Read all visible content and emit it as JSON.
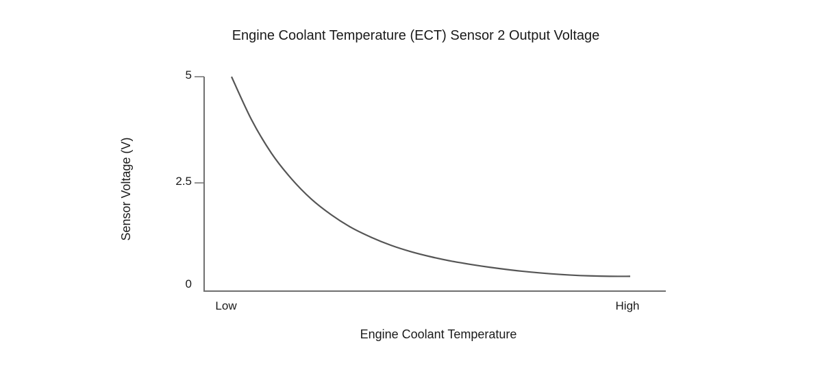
{
  "chart_data": {
    "type": "line",
    "title": "Engine Coolant Temperature (ECT) Sensor 2 Output Voltage",
    "xlabel": "Engine Coolant Temperature",
    "ylabel": "Sensor Voltage (V)",
    "x_ticks": [
      {
        "label": "Low",
        "value": 0
      },
      {
        "label": "High",
        "value": 1
      }
    ],
    "y_ticks": [
      {
        "label": "0",
        "value": 0
      },
      {
        "label": "2.5",
        "value": 2.5
      },
      {
        "label": "5",
        "value": 5
      }
    ],
    "xlim": [
      -0.06,
      1.1
    ],
    "ylim": [
      0,
      5
    ],
    "grid": false,
    "legend": "none",
    "series": [
      {
        "color": "#555555",
        "x": [
          0.0,
          0.05,
          0.1,
          0.15,
          0.2,
          0.25,
          0.3,
          0.35,
          0.4,
          0.45,
          0.5,
          0.55,
          0.6,
          0.65,
          0.7,
          0.75,
          0.8,
          0.85,
          0.9,
          0.95,
          1.0
        ],
        "y": [
          5.0,
          3.99,
          3.2,
          2.6,
          2.12,
          1.75,
          1.45,
          1.22,
          1.03,
          0.88,
          0.76,
          0.66,
          0.58,
          0.51,
          0.45,
          0.4,
          0.36,
          0.33,
          0.31,
          0.3,
          0.3
        ]
      }
    ]
  }
}
